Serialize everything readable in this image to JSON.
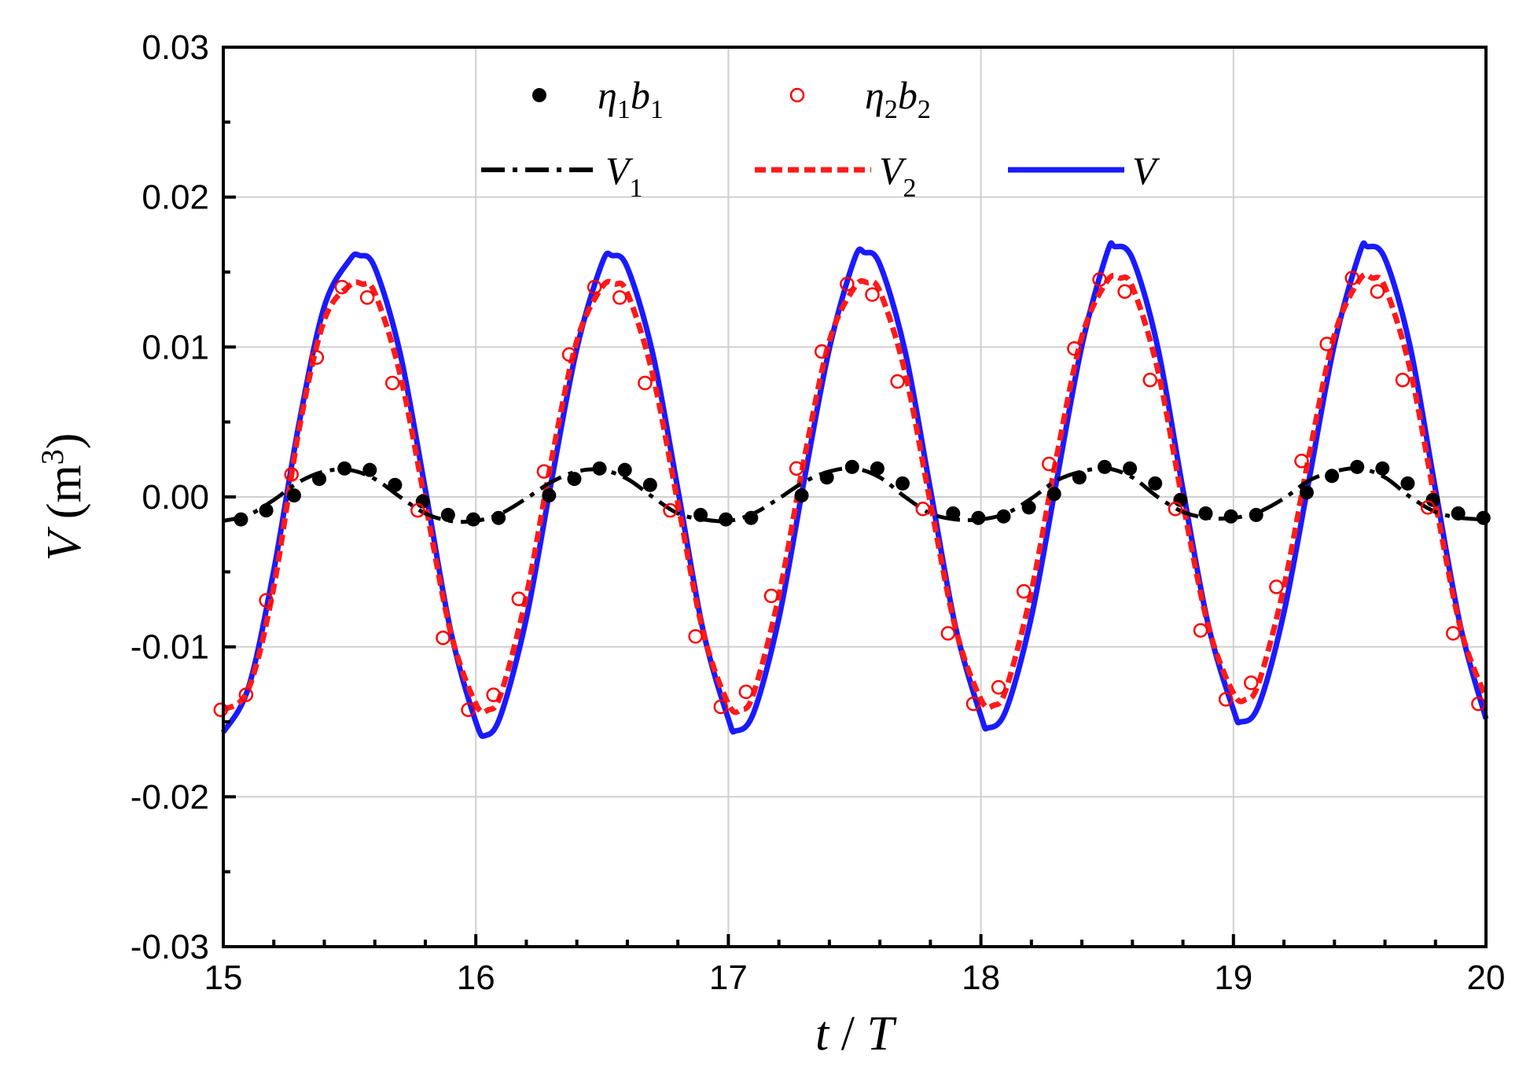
{
  "chart_data": {
    "type": "line",
    "xlabel": {
      "var": "t",
      "sep": " / ",
      "var2": "T"
    },
    "ylabel": {
      "var": "V",
      "unit_open": " (m",
      "unit_exp": "3",
      "unit_close": ")"
    },
    "xlim": [
      15,
      20
    ],
    "ylim": [
      -0.03,
      0.03
    ],
    "x_ticks": [
      15,
      16,
      17,
      18,
      19,
      20
    ],
    "x_tick_labels": [
      "15",
      "16",
      "17",
      "18",
      "19",
      "20"
    ],
    "y_ticks": [
      -0.03,
      -0.02,
      -0.01,
      0.0,
      0.01,
      0.02,
      0.03
    ],
    "y_tick_labels": [
      "-0.03",
      "-0.02",
      "-0.01",
      "0.00",
      "0.01",
      "0.02",
      "0.03"
    ],
    "grid": true,
    "legend_position": "top-center",
    "legend": [
      {
        "key": "eta1b1",
        "base1": "η",
        "sub1": "1",
        "base2": "b",
        "sub2": "1"
      },
      {
        "key": "eta2b2",
        "base1": "η",
        "sub1": "2",
        "base2": "b",
        "sub2": "2"
      },
      {
        "key": "V1",
        "base1": "V",
        "sub1": "1"
      },
      {
        "key": "V2",
        "base1": "V",
        "sub1": "2"
      },
      {
        "key": "V",
        "base1": "V"
      }
    ],
    "series": [
      {
        "key": "V",
        "style": "solid",
        "color": "#1a1aff",
        "x": [
          15.0,
          15.1,
          15.2,
          15.3,
          15.4,
          15.5,
          15.54,
          15.6,
          15.7,
          15.8,
          15.9,
          16.0,
          16.04,
          16.1,
          16.2,
          16.3,
          16.4,
          16.5,
          16.54,
          16.6,
          16.7,
          16.8,
          16.9,
          17.0,
          17.03,
          17.1,
          17.2,
          17.3,
          17.4,
          17.5,
          17.54,
          17.6,
          17.7,
          17.8,
          17.9,
          18.0,
          18.03,
          18.1,
          18.2,
          18.3,
          18.4,
          18.5,
          18.53,
          18.6,
          18.7,
          18.8,
          18.9,
          19.0,
          19.03,
          19.1,
          19.2,
          19.3,
          19.4,
          19.5,
          19.53,
          19.6,
          19.7,
          19.8,
          19.9,
          20.0
        ],
        "y": [
          -0.0157,
          -0.0127,
          -0.0049,
          0.0049,
          0.0127,
          0.0158,
          0.0161,
          0.0153,
          0.0096,
          0.0005,
          -0.0089,
          -0.015,
          -0.0159,
          -0.0145,
          -0.0081,
          0.0011,
          0.0099,
          0.0156,
          0.0161,
          0.0153,
          0.0096,
          0.0005,
          -0.0089,
          -0.0148,
          -0.0156,
          -0.0144,
          -0.0081,
          0.0011,
          0.0099,
          0.0159,
          0.0163,
          0.0155,
          0.0097,
          0.0005,
          -0.0087,
          -0.0146,
          -0.0154,
          -0.0142,
          -0.008,
          0.0011,
          0.0101,
          0.0163,
          0.0167,
          0.0159,
          0.01,
          0.0005,
          -0.0085,
          -0.0142,
          -0.015,
          -0.0139,
          -0.0077,
          0.0012,
          0.0102,
          0.0163,
          0.0167,
          0.0159,
          0.01,
          0.0005,
          -0.0087,
          -0.0148
        ]
      },
      {
        "key": "V2",
        "style": "dashed",
        "color": "#ff1a1a",
        "x": [
          15.0,
          15.1,
          15.2,
          15.3,
          15.4,
          15.5,
          15.55,
          15.6,
          15.7,
          15.8,
          15.9,
          16.0,
          16.05,
          16.1,
          16.2,
          16.3,
          16.4,
          16.5,
          16.55,
          16.6,
          16.7,
          16.8,
          16.9,
          17.0,
          17.05,
          17.1,
          17.2,
          17.3,
          17.4,
          17.5,
          17.55,
          17.6,
          17.7,
          17.8,
          17.9,
          18.0,
          18.05,
          18.1,
          18.2,
          18.3,
          18.4,
          18.5,
          18.55,
          18.6,
          18.7,
          18.8,
          18.9,
          19.0,
          19.05,
          19.1,
          19.2,
          19.3,
          19.4,
          19.5,
          19.55,
          19.6,
          19.7,
          19.8,
          19.9,
          20.0
        ],
        "y": [
          -0.0142,
          -0.0128,
          -0.006,
          0.0045,
          0.0118,
          0.0141,
          0.0142,
          0.0136,
          0.0082,
          -0.0004,
          -0.009,
          -0.0138,
          -0.0142,
          -0.0131,
          -0.0066,
          0.0025,
          0.0104,
          0.014,
          0.0142,
          0.0136,
          0.0082,
          -0.0004,
          -0.009,
          -0.0138,
          -0.0142,
          -0.0131,
          -0.0066,
          0.0025,
          0.0104,
          0.014,
          0.0143,
          0.0137,
          0.0083,
          -0.0004,
          -0.0088,
          -0.0135,
          -0.0139,
          -0.0128,
          -0.0063,
          0.0027,
          0.0107,
          0.0144,
          0.0146,
          0.014,
          0.0085,
          -0.0004,
          -0.0086,
          -0.0131,
          -0.0135,
          -0.0124,
          -0.006,
          0.0028,
          0.0108,
          0.0145,
          0.0146,
          0.014,
          0.0085,
          -0.0004,
          -0.0088,
          -0.0134
        ]
      },
      {
        "key": "V1",
        "style": "dashdot",
        "color": "#000000",
        "x": [
          15.0,
          15.1,
          15.2,
          15.3,
          15.4,
          15.5,
          15.6,
          15.7,
          15.8,
          15.9,
          16.0,
          16.1,
          16.2,
          16.3,
          16.4,
          16.5,
          16.6,
          16.7,
          16.8,
          16.9,
          17.0,
          17.1,
          17.2,
          17.3,
          17.4,
          17.5,
          17.6,
          17.7,
          17.8,
          17.9,
          18.0,
          18.1,
          18.2,
          18.3,
          18.4,
          18.5,
          18.6,
          18.7,
          18.8,
          18.9,
          19.0,
          19.1,
          19.2,
          19.3,
          19.4,
          19.5,
          19.6,
          19.7,
          19.8,
          19.9,
          20.0
        ],
        "y": [
          -0.0016,
          -0.0012,
          -0.0002,
          0.001,
          0.0017,
          0.0018,
          0.0012,
          0.0,
          -0.0011,
          -0.0016,
          -0.0016,
          -0.0011,
          -0.0001,
          0.001,
          0.0017,
          0.0018,
          0.0012,
          0.0,
          -0.0011,
          -0.0015,
          -0.0016,
          -0.0011,
          -0.0001,
          0.001,
          0.0017,
          0.0019,
          0.0013,
          0.0,
          -0.0011,
          -0.0015,
          -0.0015,
          -0.0011,
          -0.0001,
          0.0011,
          0.0017,
          0.0019,
          0.0013,
          0.0,
          -0.001,
          -0.0014,
          -0.0014,
          -0.001,
          -0.0001,
          0.0011,
          0.0017,
          0.0019,
          0.0013,
          0.0,
          -0.001,
          -0.0014,
          -0.0015
        ]
      }
    ],
    "markers": [
      {
        "key": "eta1b1",
        "style": "filled-circle",
        "color": "#000000",
        "x": [
          15.07,
          15.17,
          15.28,
          15.38,
          15.48,
          15.58,
          15.68,
          15.79,
          15.89,
          15.99,
          16.09,
          16.29,
          16.39,
          16.49,
          16.59,
          16.69,
          16.89,
          16.99,
          17.09,
          17.29,
          17.39,
          17.49,
          17.59,
          17.69,
          17.89,
          17.99,
          18.09,
          18.19,
          18.29,
          18.39,
          18.49,
          18.59,
          18.69,
          18.79,
          18.89,
          18.99,
          19.09,
          19.29,
          19.39,
          19.49,
          19.59,
          19.69,
          19.79,
          19.89,
          19.99
        ],
        "y": [
          -0.0015,
          -0.0009,
          0.0001,
          0.0012,
          0.0019,
          0.0018,
          0.0008,
          -0.0003,
          -0.0012,
          -0.0015,
          -0.0014,
          0.0001,
          0.0012,
          0.0019,
          0.0018,
          0.0008,
          -0.0012,
          -0.0015,
          -0.0014,
          0.0001,
          0.0013,
          0.002,
          0.0019,
          0.0009,
          -0.0011,
          -0.0014,
          -0.0013,
          -0.0007,
          0.0002,
          0.0013,
          0.002,
          0.0019,
          0.0009,
          -0.0002,
          -0.0011,
          -0.0013,
          -0.0012,
          0.0003,
          0.0014,
          0.002,
          0.0019,
          0.0009,
          -0.0002,
          -0.0011,
          -0.0014
        ]
      },
      {
        "key": "eta2b2",
        "style": "open-circle",
        "color": "#ff0000",
        "x": [
          14.99,
          15.09,
          15.17,
          15.27,
          15.37,
          15.47,
          15.57,
          15.67,
          15.77,
          15.87,
          15.97,
          16.07,
          16.17,
          16.27,
          16.37,
          16.47,
          16.57,
          16.67,
          16.77,
          16.87,
          16.97,
          17.07,
          17.17,
          17.27,
          17.37,
          17.47,
          17.57,
          17.67,
          17.77,
          17.87,
          17.97,
          18.07,
          18.17,
          18.27,
          18.37,
          18.47,
          18.57,
          18.67,
          18.77,
          18.87,
          18.97,
          19.07,
          19.17,
          19.27,
          19.37,
          19.47,
          19.57,
          19.67,
          19.77,
          19.87,
          19.97
        ],
        "y": [
          -0.0142,
          -0.0132,
          -0.0069,
          0.0015,
          0.0093,
          0.014,
          0.0133,
          0.0076,
          -0.0009,
          -0.0094,
          -0.0142,
          -0.0132,
          -0.0068,
          0.0017,
          0.0095,
          0.014,
          0.0133,
          0.0076,
          -0.0009,
          -0.0093,
          -0.014,
          -0.013,
          -0.0066,
          0.0019,
          0.0097,
          0.0142,
          0.0135,
          0.0077,
          -0.0008,
          -0.0091,
          -0.0138,
          -0.0127,
          -0.0063,
          0.0022,
          0.0099,
          0.0145,
          0.0137,
          0.0078,
          -0.0008,
          -0.0089,
          -0.0135,
          -0.0124,
          -0.006,
          0.0024,
          0.0102,
          0.0146,
          0.0137,
          0.0078,
          -0.0007,
          -0.0091,
          -0.0138
        ]
      }
    ]
  }
}
